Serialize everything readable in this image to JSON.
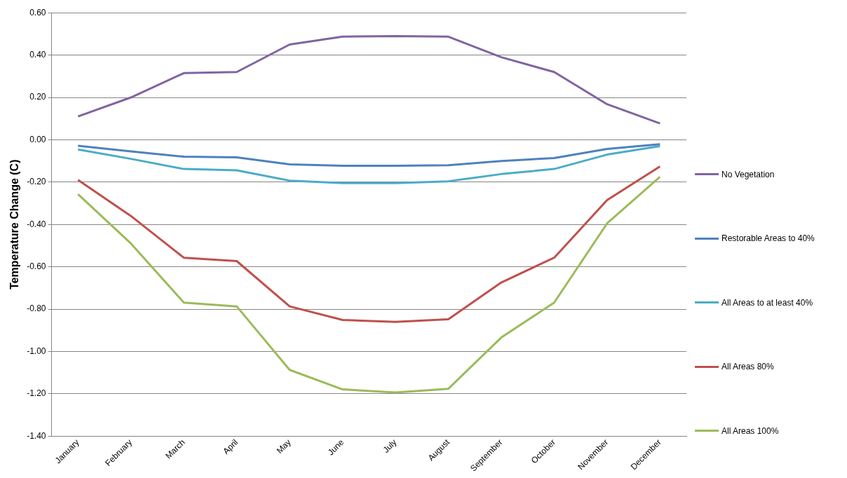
{
  "chart_data": {
    "type": "line",
    "ylabel": "Temperature Change (C)",
    "categories": [
      "January",
      "February",
      "March",
      "April",
      "May",
      "June",
      "July",
      "August",
      "September",
      "October",
      "November",
      "December"
    ],
    "series": [
      {
        "name": "No Vegetation",
        "color": "#8064a2",
        "values": [
          0.11,
          0.2,
          0.315,
          0.32,
          0.45,
          0.487,
          0.49,
          0.487,
          0.39,
          0.32,
          0.168,
          0.077
        ]
      },
      {
        "name": "Restorable Areas to 40%",
        "color": "#4f81bd",
        "values": [
          -0.028,
          -0.055,
          -0.08,
          -0.083,
          -0.116,
          -0.123,
          -0.123,
          -0.12,
          -0.1,
          -0.086,
          -0.043,
          -0.021
        ]
      },
      {
        "name": "All Areas to at least 40%",
        "color": "#4bacc6",
        "values": [
          -0.046,
          -0.09,
          -0.138,
          -0.144,
          -0.193,
          -0.205,
          -0.205,
          -0.196,
          -0.162,
          -0.138,
          -0.07,
          -0.03
        ]
      },
      {
        "name": "All Areas 80%",
        "color": "#c0504d",
        "values": [
          -0.19,
          -0.36,
          -0.557,
          -0.573,
          -0.787,
          -0.851,
          -0.86,
          -0.848,
          -0.674,
          -0.557,
          -0.285,
          -0.126
        ]
      },
      {
        "name": "All Areas 100%",
        "color": "#9bbb59",
        "values": [
          -0.257,
          -0.49,
          -0.769,
          -0.787,
          -1.087,
          -1.179,
          -1.194,
          -1.176,
          -0.934,
          -0.769,
          -0.395,
          -0.175
        ]
      }
    ],
    "ylim": [
      -1.4,
      0.6
    ],
    "yticks": [
      {
        "value": -1.4,
        "label": "-1.40"
      },
      {
        "value": -1.2,
        "label": "-1.20"
      },
      {
        "value": -1.0,
        "label": "-1.00"
      },
      {
        "value": -0.8,
        "label": "-0.80"
      },
      {
        "value": -0.6,
        "label": "-0.60"
      },
      {
        "value": -0.4,
        "label": "-0.40"
      },
      {
        "value": -0.2,
        "label": "-0.20"
      },
      {
        "value": 0,
        "label": "0.00"
      },
      {
        "value": 0.2,
        "label": "0.20"
      },
      {
        "value": 0.4,
        "label": "0.40"
      },
      {
        "value": 0.6,
        "label": "0.60"
      }
    ],
    "grid": "y",
    "legend": "right",
    "marker": "none",
    "line_style": "solid"
  }
}
